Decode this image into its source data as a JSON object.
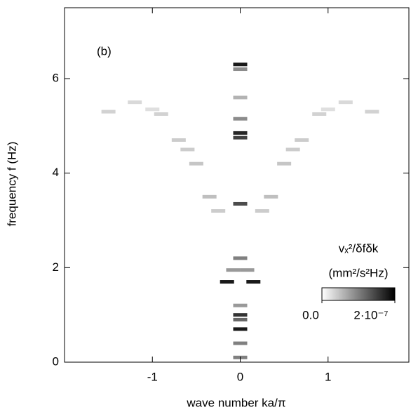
{
  "chart_data": {
    "type": "heatmap",
    "annotation": "(b)",
    "x_label": "wave number ka/π",
    "y_label": "frequency f (Hz)",
    "xlim": [
      -2.0,
      1.92
    ],
    "xticks": [
      -1,
      0,
      1
    ],
    "ylim": [
      0,
      7.5
    ],
    "yticks": [
      0,
      2,
      4,
      6
    ],
    "colorbar": {
      "title": "vₓ²/δfδk",
      "units": "(mm²/s²Hz)",
      "lim": [
        0,
        2e-07
      ],
      "ticks": [
        {
          "value": 0,
          "label": "0.0"
        },
        {
          "value": 2e-07,
          "label": "2·10⁻⁷"
        }
      ]
    },
    "x": [
      0,
      0,
      0,
      0,
      0,
      0,
      -0.15,
      0.15,
      0,
      0,
      0,
      0,
      0,
      0,
      0.08,
      -0.08,
      -1.5,
      1.5,
      -1.2,
      1.2,
      -0.9,
      0.9,
      -0.7,
      0.7,
      -0.5,
      0.5,
      -0.35,
      0.35,
      -0.25,
      0.25,
      -1.0,
      1.0,
      -0.6,
      0.6,
      0,
      0
    ],
    "y": [
      6.3,
      4.85,
      4.75,
      5.15,
      3.35,
      2.2,
      1.7,
      1.7,
      1.0,
      0.7,
      0.4,
      0.9,
      1.2,
      0.1,
      1.95,
      1.95,
      5.3,
      5.3,
      5.5,
      5.5,
      5.25,
      5.25,
      4.7,
      4.7,
      4.2,
      4.2,
      3.5,
      3.5,
      3.2,
      3.2,
      5.35,
      5.35,
      4.5,
      4.5,
      6.2,
      5.6
    ],
    "values": [
      1.8e-07,
      1.7e-07,
      1.5e-07,
      9e-08,
      1.4e-07,
      1e-07,
      1.8e-07,
      1.8e-07,
      1.6e-07,
      1.8e-07,
      1e-07,
      1.2e-07,
      8e-08,
      1e-07,
      8e-08,
      8e-08,
      3.5e-08,
      3.5e-08,
      3e-08,
      3e-08,
      3.5e-08,
      3.5e-08,
      4e-08,
      4e-08,
      4.5e-08,
      4.5e-08,
      5e-08,
      5e-08,
      4e-08,
      4e-08,
      2.5e-08,
      2.5e-08,
      4e-08,
      4e-08,
      9e-08,
      6e-08
    ]
  }
}
